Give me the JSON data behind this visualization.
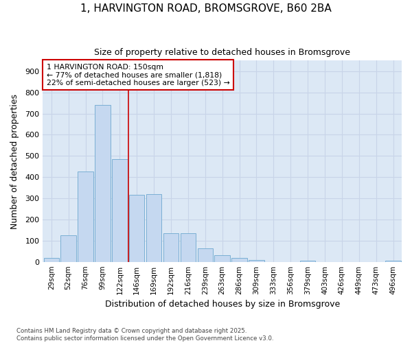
{
  "title_line1": "1, HARVINGTON ROAD, BROMSGROVE, B60 2BA",
  "title_line2": "Size of property relative to detached houses in Bromsgrove",
  "xlabel": "Distribution of detached houses by size in Bromsgrove",
  "ylabel": "Number of detached properties",
  "categories": [
    "29sqm",
    "52sqm",
    "76sqm",
    "99sqm",
    "122sqm",
    "146sqm",
    "169sqm",
    "192sqm",
    "216sqm",
    "239sqm",
    "263sqm",
    "286sqm",
    "309sqm",
    "333sqm",
    "356sqm",
    "379sqm",
    "403sqm",
    "426sqm",
    "449sqm",
    "473sqm",
    "496sqm"
  ],
  "values": [
    20,
    125,
    425,
    740,
    485,
    315,
    318,
    135,
    135,
    63,
    30,
    20,
    10,
    0,
    0,
    7,
    0,
    0,
    0,
    0,
    5
  ],
  "bar_color": "#c5d8f0",
  "bar_edge_color": "#7aafd4",
  "grid_color": "#c8d4e8",
  "plot_bg_color": "#dce8f5",
  "fig_bg_color": "#ffffff",
  "annotation_box_text_line1": "1 HARVINGTON ROAD: 150sqm",
  "annotation_box_text_line2": "← 77% of detached houses are smaller (1,818)",
  "annotation_box_text_line3": "22% of semi-detached houses are larger (523) →",
  "vline_position": 4.5,
  "vline_color": "#cc0000",
  "annotation_box_edge_color": "#cc0000",
  "ylim": [
    0,
    950
  ],
  "yticks": [
    0,
    100,
    200,
    300,
    400,
    500,
    600,
    700,
    800,
    900
  ],
  "footer_line1": "Contains HM Land Registry data © Crown copyright and database right 2025.",
  "footer_line2": "Contains public sector information licensed under the Open Government Licence v3.0."
}
